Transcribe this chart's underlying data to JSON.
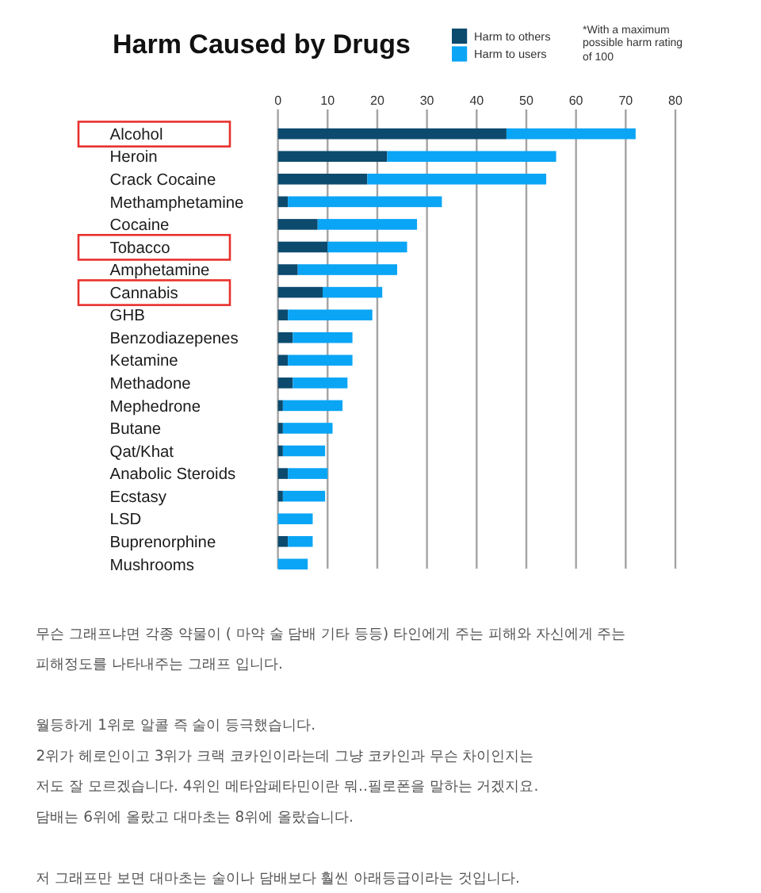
{
  "chart_data": {
    "type": "bar",
    "orientation": "horizontal",
    "stacked": true,
    "title": "Harm Caused by Drugs",
    "categories": [
      "Alcohol",
      "Heroin",
      "Crack Cocaine",
      "Methamphetamine",
      "Cocaine",
      "Tobacco",
      "Amphetamine",
      "Cannabis",
      "GHB",
      "Benzodiazepenes",
      "Ketamine",
      "Methadone",
      "Mephedrone",
      "Butane",
      "Qat/Khat",
      "Anabolic Steroids",
      "Ecstasy",
      "LSD",
      "Buprenorphine",
      "Mushrooms"
    ],
    "series": [
      {
        "name": "Harm to others",
        "color": "#0c4a6e",
        "values": [
          46,
          22,
          18,
          2,
          8,
          10,
          4,
          9,
          2,
          3,
          2,
          3,
          1,
          1,
          1,
          2,
          1,
          0,
          2,
          0
        ]
      },
      {
        "name": "Harm to users",
        "color": "#0aa5f5",
        "values": [
          26,
          34,
          36,
          31,
          20,
          16,
          20,
          12,
          17,
          12,
          13,
          11,
          12,
          10,
          8.5,
          8,
          8.5,
          7,
          5,
          6
        ]
      }
    ],
    "xlim": [
      0,
      80
    ],
    "xticks": [
      0,
      10,
      20,
      30,
      40,
      50,
      60,
      70,
      80
    ],
    "grid": "x",
    "legend": "top",
    "annotations": [
      "*With a maximum possible harm rating of 100",
      "무슨 그래프냐면 각종 약물이 ( 마약 술 담배 기타 등등) 타인에게 주는 피해와 자신에게 주는",
      "피해정도를 나타내주는 그래프 입니다.",
      "월등하게 1위로 알콜 즉 술이 등극했습니다.",
      "2위가 헤로인이고 3위가 크랙 코카인이라는데 그냥 코카인과 무슨 차이인지는",
      "저도 잘 모르겠습니다. 4위인 메타암페타민이란 뭐..필로폰을 말하는 거겠지요.",
      "담배는 6위에 올랐고 대마초는 8위에 올랐습니다.",
      "저 그래프만 보면 대마초는 술이나 담배보다 훨씬 아래등급이라는 것입니다."
    ]
  }
}
